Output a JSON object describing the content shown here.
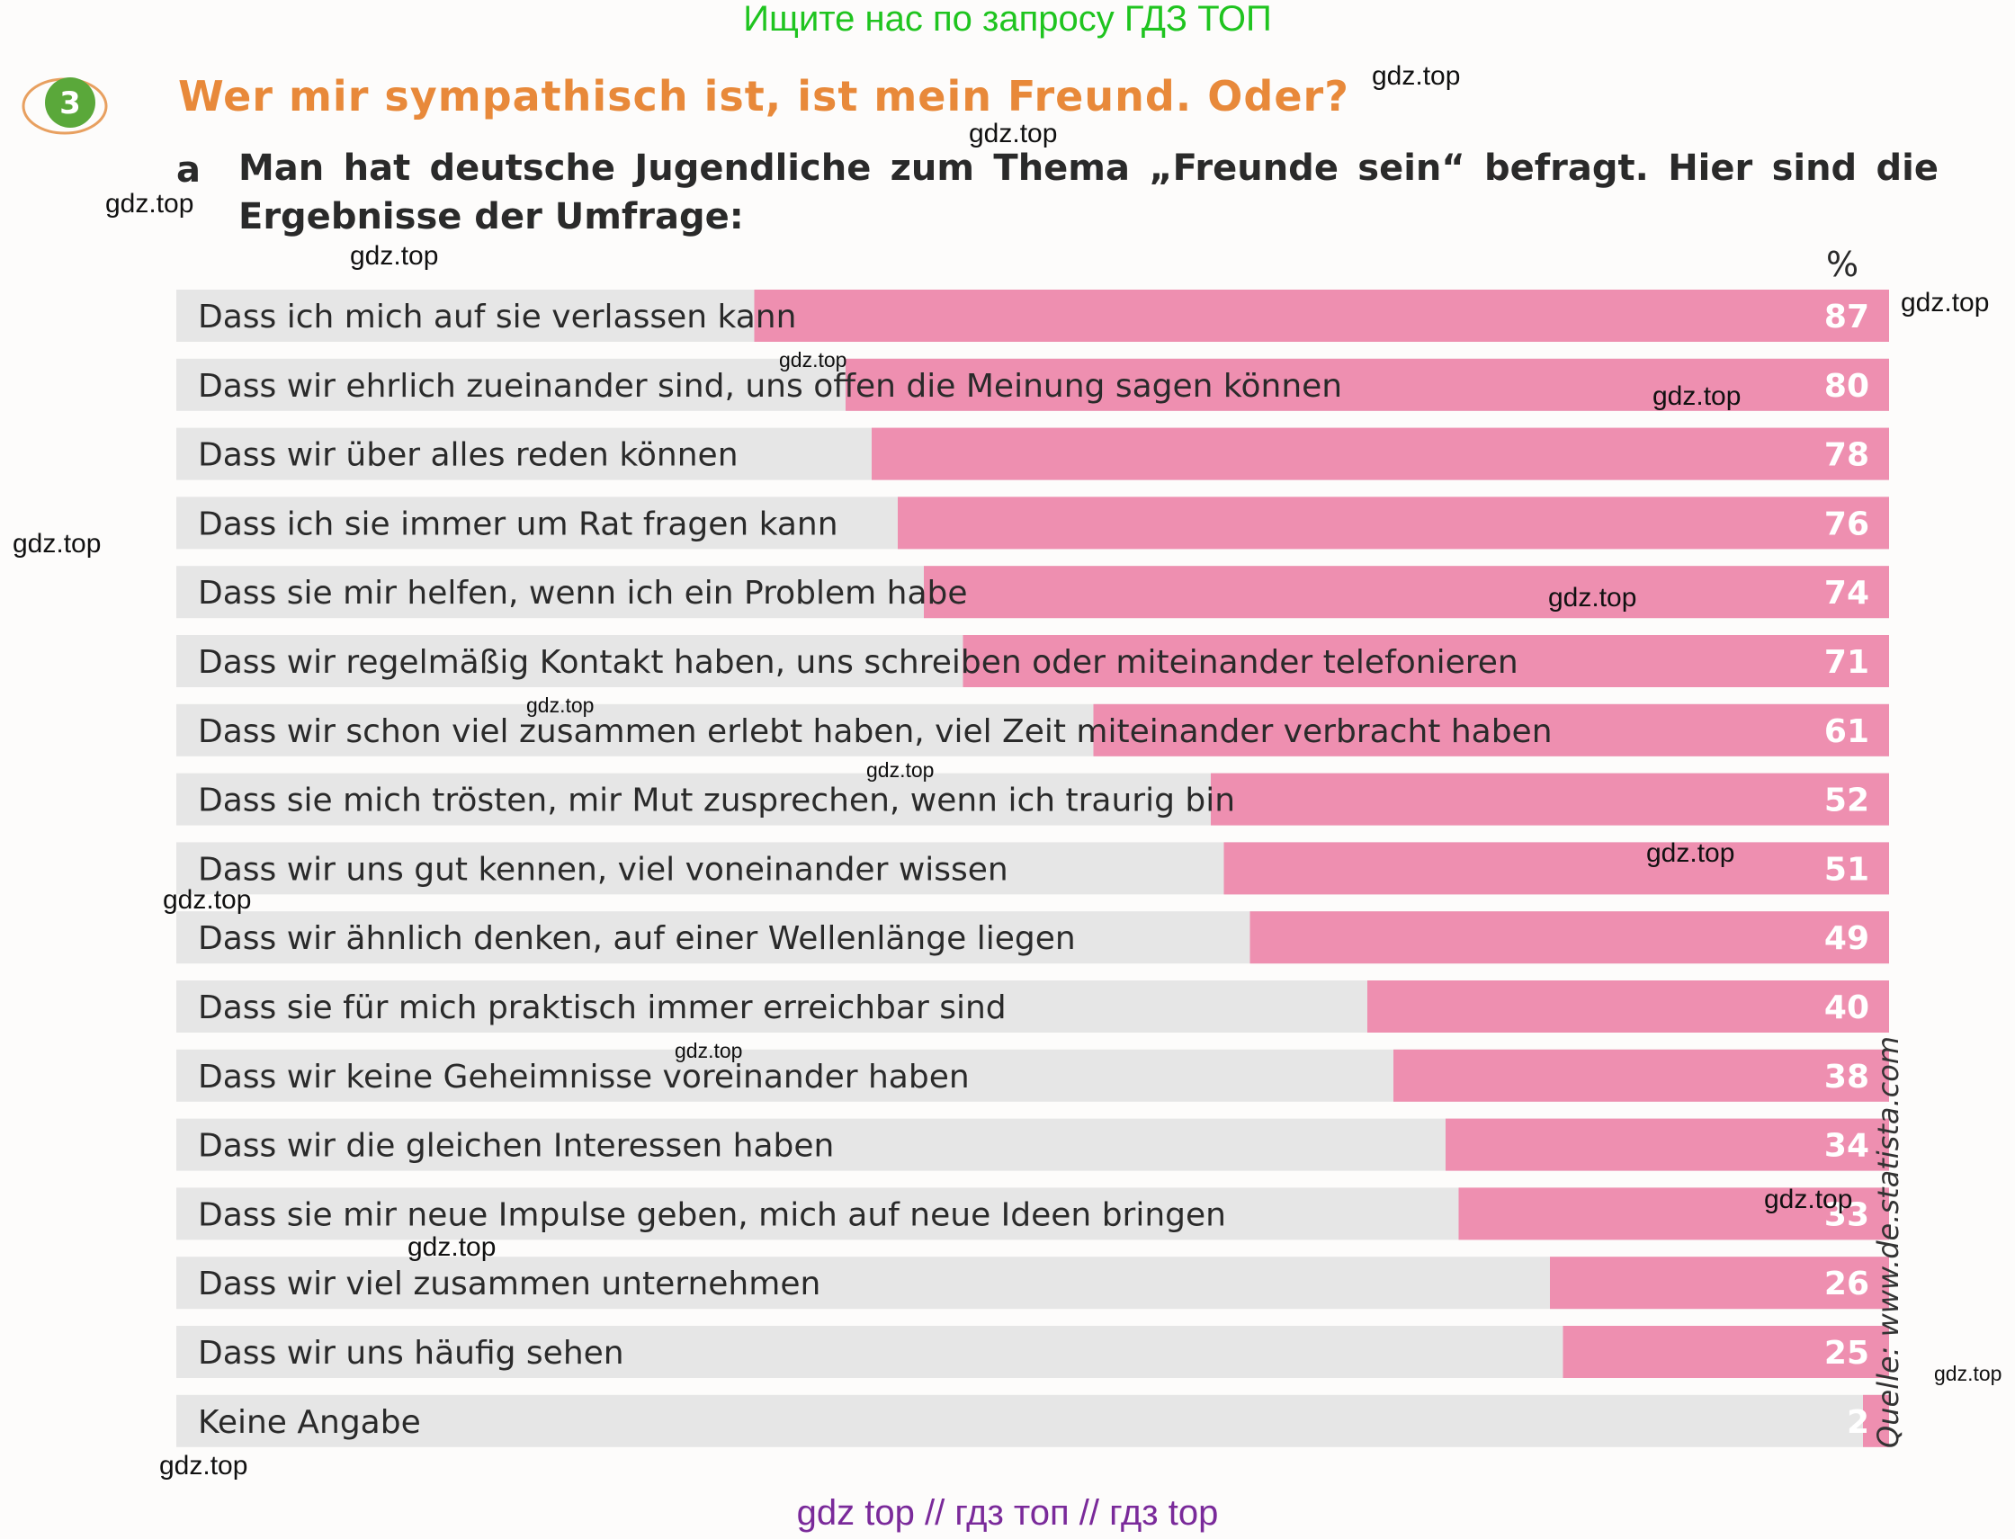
{
  "banner": "Ищите нас по запросу ГДЗ ТОП",
  "task": {
    "number": "3",
    "title": "Wer mir sympathisch ist, ist mein Freund. Oder?",
    "sub_letter": "a",
    "sub_text": "Man hat deutsche Jugendliche zum Thema „Freunde sein“ befragt. Hier sind die Ergebnisse der Umfrage:"
  },
  "colors": {
    "bar": "#ee8fb0",
    "row_bg": "#e6e6e6",
    "title": "#e8893a",
    "badge": "#5aa83a"
  },
  "chart_data": {
    "type": "bar",
    "orientation": "horizontal",
    "unit_label": "%",
    "xlim": [
      0,
      100
    ],
    "categories": [
      "Dass ich mich auf sie verlassen kann",
      "Dass wir ehrlich zueinander sind, uns offen die Meinung sagen können",
      "Dass wir über alles reden können",
      "Dass ich sie immer um Rat fragen kann",
      "Dass sie mir helfen, wenn ich ein Problem habe",
      "Dass wir regelmäßig Kontakt haben, uns schreiben oder miteinander telefonieren",
      "Dass wir schon viel zusammen erlebt haben, viel Zeit miteinander verbracht haben",
      "Dass sie mich trösten, mir Mut zusprechen, wenn ich traurig bin",
      "Dass wir uns gut kennen, viel voneinander wissen",
      "Dass wir ähnlich denken, auf einer Wellenlänge liegen",
      "Dass sie für mich praktisch immer erreichbar sind",
      "Dass wir keine Geheimnisse voreinander haben",
      "Dass wir die gleichen Interessen haben",
      "Dass sie mir neue Impulse geben, mich auf neue Ideen bringen",
      "Dass wir viel zusammen unternehmen",
      "Dass wir uns häufig sehen",
      "Keine Angabe"
    ],
    "values": [
      87,
      80,
      78,
      76,
      74,
      71,
      61,
      52,
      51,
      49,
      40,
      38,
      34,
      33,
      26,
      25,
      2
    ],
    "source": "Quelle: www.de.statista.com"
  },
  "watermarks": [
    "gdz.top",
    "gdz.top",
    "gdz.top",
    "gdz.top",
    "gdz.top",
    "gdz.top",
    "gdz.top",
    "gdz.top",
    "gdz.top",
    "gdz.top",
    "gdz.top",
    "gdz.top",
    "gdz.top",
    "gdz.top",
    "gdz.top",
    "gdz.top",
    "gdz.top",
    "gdz.top"
  ],
  "footer": "gdz top  //  гдз топ  //  гдз top"
}
